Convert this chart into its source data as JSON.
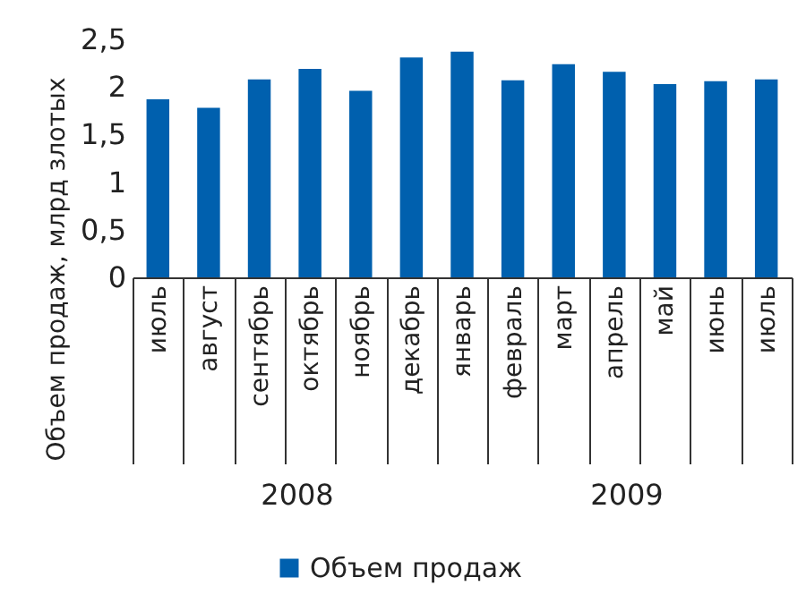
{
  "chart_data": {
    "type": "bar",
    "ylabel": "Объем продаж, млрд злотых",
    "categories": [
      "июль",
      "август",
      "сентябрь",
      "октябрь",
      "ноябрь",
      "декабрь",
      "январь",
      "февраль",
      "март",
      "апрель",
      "май",
      "июнь",
      "июль"
    ],
    "series": [
      {
        "name": "Объем продаж",
        "color": "#0060ae",
        "values": [
          1.87,
          1.78,
          2.08,
          2.19,
          1.96,
          2.31,
          2.37,
          2.07,
          2.24,
          2.16,
          2.03,
          2.06,
          2.08
        ]
      }
    ],
    "ylim": [
      0,
      2.5
    ],
    "yticks": [
      0,
      {
        "value": 0.5,
        "label": "0,5"
      },
      1,
      {
        "value": 1.5,
        "label": "1,5"
      },
      2,
      {
        "value": 2.5,
        "label": "2,5"
      }
    ],
    "annotations": [
      "2008",
      "2009"
    ],
    "grid": false,
    "legend": "bottom"
  }
}
